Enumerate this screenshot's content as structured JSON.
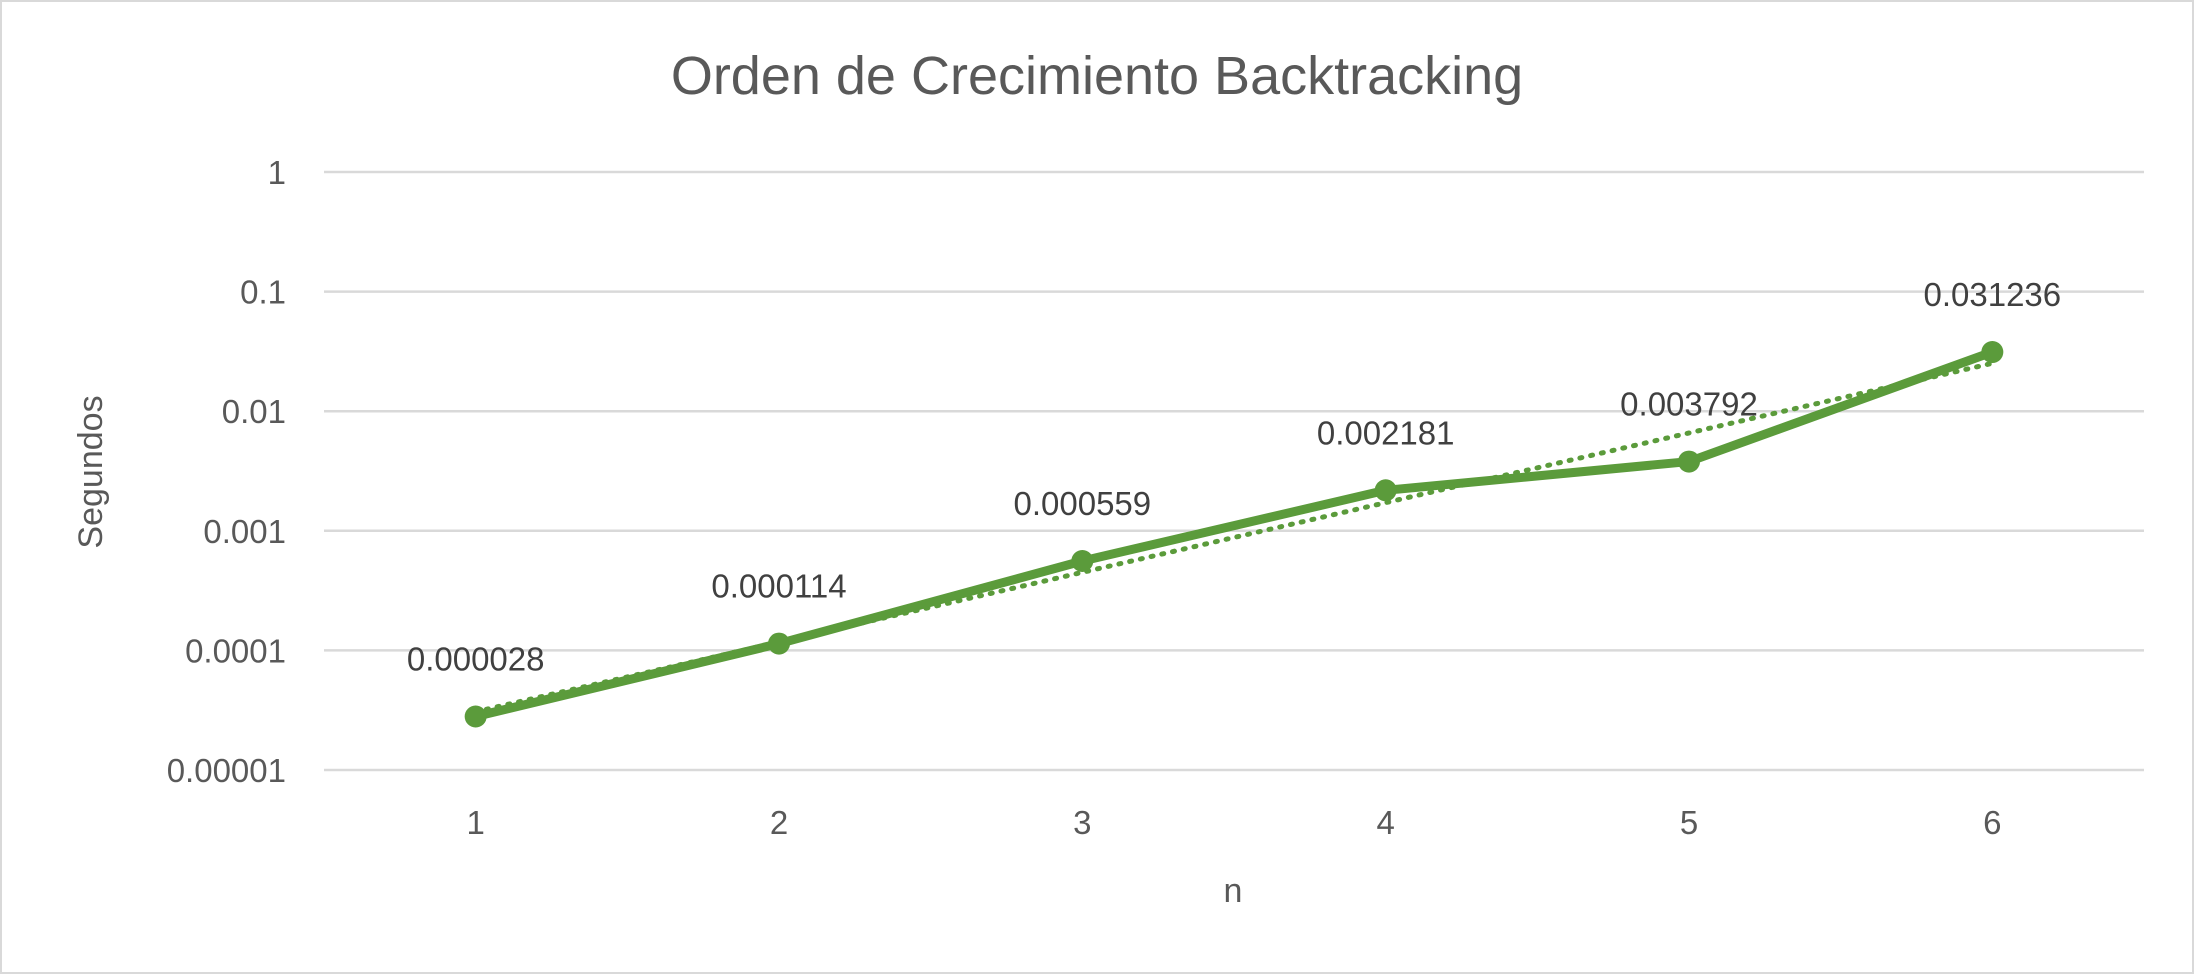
{
  "chart_data": {
    "type": "line",
    "title": "Orden de Crecimiento Backtracking",
    "xlabel": "n",
    "ylabel": "Segundos",
    "yscale": "log",
    "ylim": [
      1e-05,
      1
    ],
    "y_ticks": [
      1e-05,
      0.0001,
      0.001,
      0.01,
      0.1,
      1
    ],
    "y_tick_labels": [
      "0.00001",
      "0.0001",
      "0.001",
      "0.01",
      "0.1",
      "1"
    ],
    "categories": [
      "1",
      "2",
      "3",
      "4",
      "5",
      "6"
    ],
    "series": [
      {
        "values": [
          2.8e-05,
          0.000114,
          0.000559,
          0.002181,
          0.003792,
          0.031236
        ],
        "data_labels": [
          "0.000028",
          "0.000114",
          "0.000559",
          "0.002181",
          "0.003792",
          "0.031236"
        ],
        "color": "#5b9b3b",
        "markers": true,
        "trendline": "exponential (dotted)"
      }
    ],
    "grid": true,
    "legend": "none"
  }
}
